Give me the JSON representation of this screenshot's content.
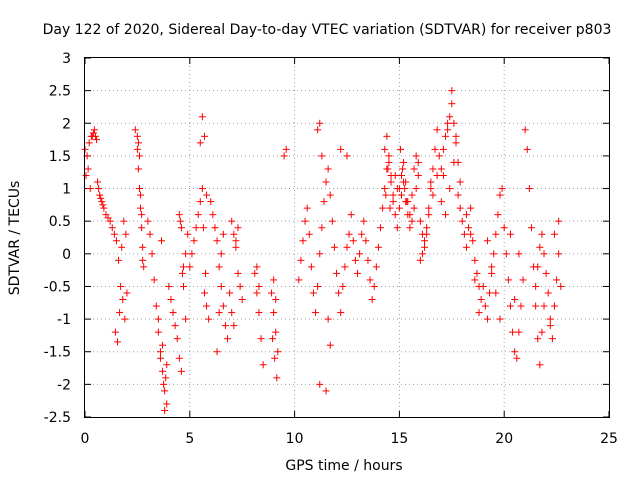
{
  "chart_data": {
    "type": "scatter",
    "title": "Day 122 of 2020, Sidereal Day-to-day VTEC variation (SDTVAR) for receiver p803",
    "xlabel": "GPS time / hours",
    "ylabel": "SDTVAR / TECUs",
    "xlim": [
      0,
      25
    ],
    "ylim": [
      -2.5,
      3
    ],
    "xticks": [
      0,
      5,
      10,
      15,
      20,
      25
    ],
    "yticks": [
      -2.5,
      -2,
      -1.5,
      -1,
      -0.5,
      0,
      0.5,
      1,
      1.5,
      2,
      2.5,
      3
    ],
    "xtick_labels": [
      "0",
      "5",
      "10",
      "15",
      "20",
      "25"
    ],
    "ytick_labels": [
      "-2.5",
      "-2",
      "-1.5",
      "-1",
      "-0.5",
      "0",
      "0.5",
      "1",
      "1.5",
      "2",
      "2.5",
      "3"
    ],
    "grid": true,
    "marker": "+",
    "color": "#ff0000",
    "series": [
      {
        "name": "p803",
        "x": [
          0.0,
          0.1,
          0.2,
          0.3,
          0.4,
          0.5,
          0.6,
          0.7,
          0.8,
          0.9,
          0.05,
          0.15,
          0.25,
          0.35,
          0.45,
          0.55,
          0.65,
          0.75,
          0.85,
          1.0,
          1.1,
          1.2,
          1.3,
          1.4,
          1.5,
          1.6,
          1.7,
          1.8,
          1.9,
          2.0,
          1.45,
          1.55,
          1.65,
          1.75,
          1.85,
          1.95,
          2.4,
          2.5,
          2.55,
          2.6,
          2.65,
          2.7,
          2.75,
          2.8,
          2.5,
          2.6,
          2.7,
          2.55,
          2.65,
          2.75,
          3.0,
          3.1,
          3.2,
          3.3,
          3.4,
          3.5,
          3.6,
          3.7,
          3.8,
          3.9,
          3.5,
          3.6,
          3.7,
          3.75,
          3.8,
          3.85,
          3.9,
          3.65,
          4.0,
          4.1,
          4.2,
          4.3,
          4.4,
          4.5,
          4.6,
          4.7,
          4.8,
          4.9,
          4.5,
          4.6,
          4.7,
          4.8,
          4.55,
          4.65,
          5.0,
          5.1,
          5.2,
          5.3,
          5.4,
          5.5,
          5.6,
          5.7,
          5.8,
          5.9,
          5.5,
          5.6,
          5.7,
          5.8,
          5.65,
          5.75,
          6.0,
          6.1,
          6.2,
          6.3,
          6.4,
          6.5,
          6.6,
          6.7,
          6.8,
          6.9,
          6.3,
          6.4,
          6.5,
          6.6,
          7.0,
          7.1,
          7.2,
          7.3,
          7.4,
          7.5,
          7.0,
          7.1,
          7.2,
          7.3,
          8.1,
          8.2,
          8.3,
          8.4,
          8.5,
          8.2,
          8.3,
          8.9,
          9.0,
          9.1,
          9.2,
          8.95,
          9.05,
          9.15,
          9.0,
          9.1,
          9.5,
          9.6,
          10.2,
          10.3,
          10.4,
          10.5,
          10.6,
          10.7,
          10.8,
          10.9,
          11.0,
          11.1,
          11.2,
          11.3,
          11.4,
          11.5,
          11.6,
          11.7,
          11.8,
          11.9,
          11.1,
          11.2,
          11.3,
          11.6,
          11.7,
          11.2,
          11.5,
          12.0,
          12.1,
          12.2,
          12.3,
          12.4,
          12.5,
          12.6,
          12.7,
          12.8,
          12.9,
          12.2,
          12.5,
          13.0,
          13.1,
          13.2,
          13.3,
          13.4,
          13.5,
          13.6,
          13.7,
          13.8,
          13.9,
          14.0,
          14.1,
          14.2,
          14.3,
          14.4,
          14.5,
          14.6,
          14.7,
          14.8,
          14.9,
          14.3,
          14.4,
          14.5,
          14.6,
          14.7,
          14.8,
          14.9,
          14.35,
          14.45,
          14.55,
          15.0,
          15.1,
          15.2,
          15.3,
          15.4,
          15.5,
          15.6,
          15.7,
          15.8,
          15.9,
          15.0,
          15.1,
          15.2,
          15.3,
          15.4,
          15.5,
          15.6,
          15.7,
          15.8,
          15.9,
          15.05,
          15.15,
          15.25,
          15.35,
          16.0,
          16.1,
          16.2,
          16.3,
          16.4,
          16.5,
          16.6,
          16.7,
          16.8,
          16.9,
          16.0,
          16.2,
          16.4,
          16.6,
          16.8,
          16.1,
          16.3,
          16.5,
          17.0,
          17.1,
          17.2,
          17.3,
          17.4,
          17.5,
          17.6,
          17.7,
          17.8,
          17.9,
          17.0,
          17.2,
          17.4,
          17.6,
          17.8,
          17.1,
          17.3,
          17.5,
          17.7,
          17.9,
          18.0,
          18.1,
          18.2,
          18.3,
          18.4,
          18.5,
          18.6,
          18.7,
          18.8,
          18.9,
          18.2,
          18.4,
          18.6,
          18.8,
          19.0,
          19.1,
          19.2,
          19.3,
          19.4,
          19.5,
          19.6,
          19.7,
          19.8,
          19.9,
          19.2,
          19.4,
          19.6,
          19.8,
          20.0,
          20.1,
          20.2,
          20.3,
          20.4,
          20.5,
          20.6,
          20.7,
          20.8,
          20.9,
          20.3,
          20.5,
          20.7,
          21.0,
          21.1,
          21.2,
          21.3,
          21.4,
          21.5,
          21.6,
          21.7,
          21.8,
          21.9,
          21.5,
          21.6,
          21.7,
          21.8,
          21.9,
          22.0,
          22.1,
          22.2,
          22.3,
          22.4,
          22.5,
          22.6,
          22.7,
          22.2,
          22.4,
          22.6
        ],
        "y": [
          1.6,
          1.5,
          1.7,
          1.8,
          1.85,
          1.8,
          1.1,
          0.9,
          0.8,
          0.7,
          1.2,
          1.3,
          1.0,
          1.8,
          1.9,
          1.75,
          1.0,
          0.85,
          0.75,
          0.6,
          0.55,
          0.5,
          0.4,
          0.3,
          0.2,
          -0.1,
          -0.5,
          -0.7,
          -1.0,
          -0.6,
          -1.2,
          -1.35,
          -0.9,
          0.1,
          0.5,
          0.3,
          1.9,
          1.6,
          1.3,
          1.0,
          0.7,
          0.4,
          0.1,
          -0.2,
          1.8,
          1.5,
          0.6,
          1.7,
          0.9,
          -0.1,
          0.5,
          0.3,
          0.0,
          -0.4,
          -0.8,
          -1.2,
          -1.5,
          -1.8,
          -2.1,
          -2.3,
          -1.0,
          -1.6,
          -1.4,
          -2.0,
          -2.4,
          -1.9,
          -1.7,
          0.2,
          -0.5,
          -0.7,
          -0.9,
          -1.1,
          -1.3,
          -1.6,
          -1.8,
          -0.2,
          0.0,
          0.3,
          0.6,
          0.4,
          -0.5,
          -1.0,
          0.5,
          -0.3,
          -0.2,
          0.0,
          0.2,
          0.4,
          0.6,
          0.8,
          1.0,
          -0.6,
          -0.8,
          -1.0,
          1.7,
          2.1,
          1.8,
          0.9,
          0.4,
          -0.3,
          0.8,
          0.6,
          0.4,
          0.2,
          -0.2,
          -0.5,
          -0.8,
          -1.1,
          -1.3,
          -0.6,
          -1.5,
          -0.9,
          0.0,
          0.3,
          0.5,
          0.3,
          0.1,
          -0.3,
          -0.5,
          -0.7,
          -0.9,
          -1.1,
          0.2,
          0.4,
          -0.3,
          -0.6,
          -0.9,
          -1.3,
          -1.7,
          -0.2,
          -0.5,
          -0.6,
          -0.9,
          -1.2,
          -1.5,
          -1.3,
          -1.6,
          -1.9,
          -0.4,
          -0.7,
          1.5,
          1.6,
          -0.4,
          -0.1,
          0.2,
          0.5,
          0.7,
          0.3,
          -0.2,
          -0.6,
          -0.9,
          -0.5,
          0.0,
          0.4,
          0.8,
          1.1,
          1.3,
          0.9,
          0.5,
          0.1,
          1.9,
          2.0,
          1.5,
          -1.0,
          -1.4,
          -2.0,
          -2.1,
          -0.3,
          -0.6,
          -0.9,
          -0.5,
          -0.2,
          0.1,
          0.3,
          0.6,
          0.2,
          -0.1,
          1.6,
          1.5,
          -0.3,
          0.0,
          0.3,
          0.5,
          0.2,
          -0.1,
          -0.4,
          -0.7,
          -0.5,
          -0.2,
          0.1,
          0.4,
          0.7,
          1.0,
          1.3,
          1.5,
          1.2,
          0.9,
          0.6,
          0.4,
          1.6,
          1.8,
          1.4,
          1.1,
          0.8,
          1.2,
          1.0,
          0.9,
          1.3,
          0.7,
          1.0,
          1.2,
          1.4,
          1.1,
          0.8,
          0.6,
          0.9,
          1.3,
          1.5,
          1.2,
          0.7,
          0.9,
          1.1,
          0.8,
          0.6,
          0.4,
          0.5,
          0.7,
          1.0,
          1.4,
          1.6,
          1.3,
          1.0,
          0.8,
          0.5,
          0.3,
          0.1,
          0.4,
          0.7,
          1.0,
          1.3,
          1.6,
          1.9,
          1.5,
          -0.1,
          0.2,
          0.6,
          0.9,
          1.2,
          0.0,
          0.3,
          1.1,
          1.3,
          1.6,
          1.8,
          1.9,
          2.1,
          2.3,
          2.0,
          1.7,
          1.4,
          1.1,
          0.8,
          0.6,
          1.0,
          1.4,
          0.9,
          1.2,
          2.0,
          2.5,
          1.8,
          0.7,
          0.5,
          0.3,
          0.1,
          0.4,
          0.7,
          0.2,
          -0.1,
          -0.3,
          -0.5,
          -0.7,
          0.6,
          0.3,
          -0.4,
          -0.9,
          -0.5,
          -0.8,
          -1.0,
          -0.6,
          -0.3,
          0.0,
          0.3,
          0.6,
          0.9,
          1.0,
          0.2,
          -0.2,
          -0.6,
          -1.0,
          0.4,
          0.0,
          -0.4,
          -0.8,
          -1.2,
          -1.5,
          -1.6,
          -1.2,
          -0.8,
          -0.4,
          0.3,
          -0.7,
          0.0,
          1.9,
          1.6,
          1.0,
          0.4,
          -0.2,
          -0.8,
          -1.3,
          -1.7,
          -1.2,
          -0.8,
          -0.5,
          -0.2,
          0.1,
          0.3,
          0.0,
          -0.3,
          -0.6,
          -1.0,
          -1.3,
          -0.8,
          -0.4,
          0.0,
          -0.5,
          -1.1,
          0.3,
          0.5
        ]
      }
    ]
  }
}
